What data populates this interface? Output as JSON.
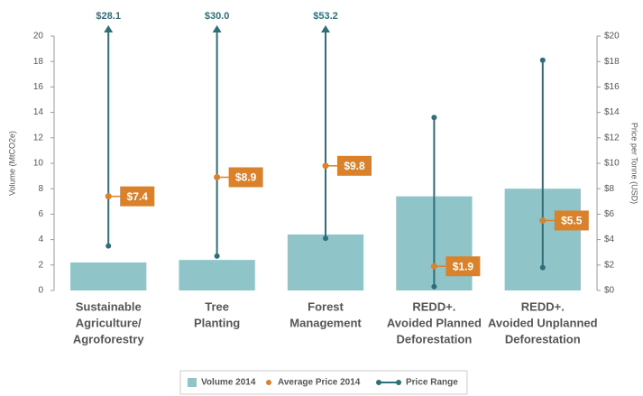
{
  "chart_data": {
    "type": "bar_range",
    "y_label": "Volume (MtCO2e)",
    "y2_label": "Price per Tonne (USD)",
    "categories": [
      [
        "Sustainable",
        "Agriculture/",
        "Agroforestry"
      ],
      [
        "Tree",
        "Planting"
      ],
      [
        "Forest",
        "Management"
      ],
      [
        "REDD+.",
        "Avoided Planned",
        "Deforestation"
      ],
      [
        "REDD+.",
        "Avoided Unplanned",
        "Deforestation"
      ]
    ],
    "series": [
      {
        "name": "Volume 2014",
        "color": "#8fc4c8",
        "values": [
          2.2,
          2.4,
          4.4,
          7.4,
          8.0
        ]
      },
      {
        "name": "Average Price 2014",
        "color": "#d9822b",
        "axis": "y2",
        "values": [
          7.4,
          8.9,
          9.8,
          1.9,
          5.5
        ],
        "value_labels": [
          "$7.4",
          "$8.9",
          "$9.8",
          "$1.9",
          "$5.5"
        ]
      },
      {
        "name": "Price Range",
        "color": "#2f6f79",
        "axis": "y2",
        "values": [
          28.1,
          30.0,
          53.2,
          13.6,
          18.1
        ],
        "value_labels": [
          "$28.1",
          "$30.0",
          "$53.2",
          null,
          null
        ],
        "min_values": [
          3.5,
          2.7,
          4.1,
          0.3,
          1.8
        ]
      }
    ],
    "ylim": [
      0,
      20
    ],
    "yticks": [
      0,
      2,
      4,
      6,
      8,
      10,
      12,
      14,
      16,
      18,
      20
    ],
    "y2lim": [
      0,
      20
    ],
    "y2ticks": [
      {
        "value": 0,
        "label": "$0"
      },
      {
        "value": 2,
        "label": "$2"
      },
      {
        "value": 4,
        "label": "$4"
      },
      {
        "value": 6,
        "label": "$6"
      },
      {
        "value": 8,
        "label": "$8"
      },
      {
        "value": 10,
        "label": "$10"
      },
      {
        "value": 12,
        "label": "$12"
      },
      {
        "value": 14,
        "label": "$14"
      },
      {
        "value": 16,
        "label": "$16"
      },
      {
        "value": 18,
        "label": "$18"
      },
      {
        "value": 20,
        "label": "$20"
      }
    ],
    "legend": "bottom"
  }
}
